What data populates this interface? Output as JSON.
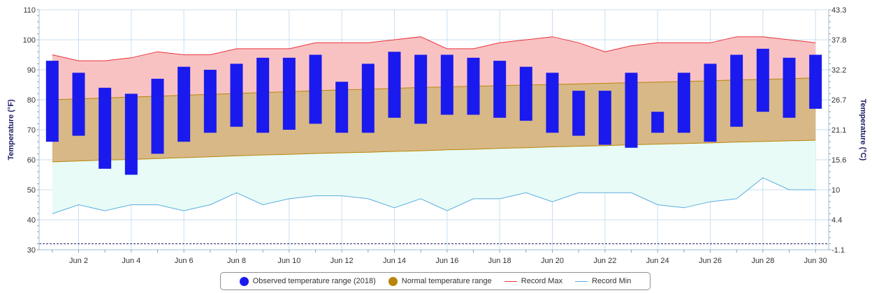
{
  "chart_data": {
    "type": "bar",
    "title": "",
    "ylabel_left": "Temperature (°F)",
    "ylabel_right": "Temperature (°C)",
    "ylim": [
      30,
      110
    ],
    "yticks_left": [
      "30",
      "40",
      "50",
      "60",
      "70",
      "80",
      "90",
      "100",
      "110"
    ],
    "yticks_right": [
      "-1.1",
      "4.4",
      "10",
      "15.6",
      "21.1",
      "26.7",
      "32.2",
      "37.8",
      "43.3"
    ],
    "x_days": [
      1,
      2,
      3,
      4,
      5,
      6,
      7,
      8,
      9,
      10,
      11,
      12,
      13,
      14,
      15,
      16,
      17,
      18,
      19,
      20,
      21,
      22,
      23,
      24,
      25,
      26,
      27,
      28,
      29,
      30
    ],
    "x_ticks": [
      {
        "day": 2,
        "label": "Jun 2"
      },
      {
        "day": 4,
        "label": "Jun 4"
      },
      {
        "day": 6,
        "label": "Jun 6"
      },
      {
        "day": 8,
        "label": "Jun 8"
      },
      {
        "day": 10,
        "label": "Jun 10"
      },
      {
        "day": 12,
        "label": "Jun 12"
      },
      {
        "day": 14,
        "label": "Jun 14"
      },
      {
        "day": 16,
        "label": "Jun 16"
      },
      {
        "day": 18,
        "label": "Jun 18"
      },
      {
        "day": 20,
        "label": "Jun 20"
      },
      {
        "day": 22,
        "label": "Jun 22"
      },
      {
        "day": 24,
        "label": "Jun 24"
      },
      {
        "day": 26,
        "label": "Jun 26"
      },
      {
        "day": 28,
        "label": "Jun 28"
      },
      {
        "day": 30,
        "label": "Jun 30"
      }
    ],
    "reference_line": 32,
    "series": [
      {
        "name": "Observed temperature range (2018)",
        "color": "#1a1aee",
        "low": [
          66,
          68,
          57,
          55,
          62,
          66,
          69,
          71,
          69,
          70,
          72,
          69,
          69,
          74,
          72,
          75,
          75,
          74,
          73,
          69,
          68,
          65,
          64,
          69,
          69,
          66,
          71,
          76,
          74,
          77
        ],
        "high": [
          93,
          89,
          84,
          82,
          87,
          91,
          90,
          92,
          94,
          94,
          95,
          86,
          92,
          96,
          95,
          95,
          94,
          93,
          91,
          89,
          83,
          83,
          89,
          76,
          89,
          92,
          95,
          97,
          94,
          95
        ]
      },
      {
        "name": "Normal temperature range",
        "color": "#b8860b",
        "low": [
          59.3,
          59.6,
          59.9,
          60.1,
          60.4,
          60.7,
          61.0,
          61.3,
          61.6,
          61.8,
          62.1,
          62.3,
          62.5,
          62.8,
          63.0,
          63.3,
          63.5,
          63.8,
          64.0,
          64.3,
          64.5,
          64.7,
          65.0,
          65.2,
          65.4,
          65.6,
          65.9,
          66.1,
          66.3,
          66.5
        ],
        "high": [
          80.0,
          80.3,
          80.6,
          80.9,
          81.2,
          81.5,
          81.8,
          82.1,
          82.4,
          82.7,
          83.0,
          83.3,
          83.5,
          83.8,
          84.1,
          84.3,
          84.5,
          84.7,
          84.9,
          85.1,
          85.3,
          85.5,
          85.7,
          85.9,
          86.1,
          86.3,
          86.6,
          86.8,
          87.0,
          87.3
        ]
      },
      {
        "name": "Record Max",
        "color": "#e8333b",
        "values": [
          95,
          93,
          93,
          94,
          96,
          95,
          95,
          97,
          97,
          97,
          99,
          99,
          99,
          100,
          101,
          97,
          97,
          99,
          100,
          101,
          99,
          96,
          98,
          99,
          99,
          99,
          101,
          101,
          100,
          99
        ]
      },
      {
        "name": "Record Min",
        "color": "#5aaee0",
        "values": [
          42,
          45,
          43,
          45,
          45,
          43,
          45,
          49,
          45,
          47,
          48,
          48,
          47,
          44,
          47,
          43,
          47,
          47,
          49,
          46,
          49,
          49,
          49,
          45,
          44,
          46,
          47,
          54,
          50,
          50
        ]
      }
    ],
    "grid": true,
    "legend_position": "bottom"
  }
}
